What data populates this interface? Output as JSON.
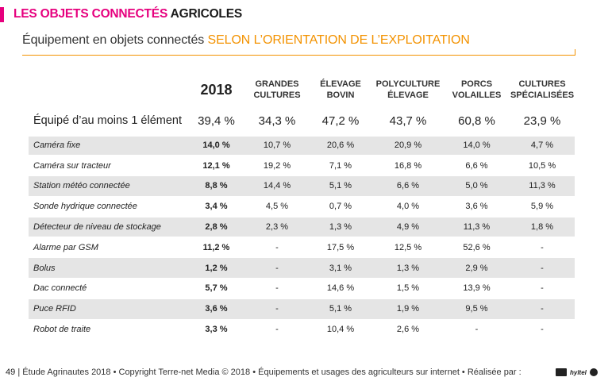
{
  "header": {
    "title_part1": "LES OBJETS CONNECTÉS ",
    "title_part2": "AGRICOLES",
    "accent_color": "#e6007e"
  },
  "subtitle": {
    "part1": "Équipement en objets connectés ",
    "part2": "SELON L’ORIENTATION DE L’EXPLOITATION",
    "accent_color": "#f39200"
  },
  "table": {
    "columns": [
      "2018",
      "GRANDES CULTURES",
      "ÉLEVAGE BOVIN",
      "POLYCULTURE ÉLEVAGE",
      "PORCS VOLAILLES",
      "CULTURES SPÉCIALISÉES"
    ],
    "summary": {
      "label": "Équipé d’au moins 1 élément",
      "values": [
        "39,4 %",
        "34,3 %",
        "47,2 %",
        "43,7 %",
        "60,8 %",
        "23,9 %"
      ]
    },
    "rows": [
      {
        "label": "Caméra fixe",
        "values": [
          "14,0 %",
          "10,7 %",
          "20,6 %",
          "20,9 %",
          "14,0 %",
          "4,7 %"
        ]
      },
      {
        "label": "Caméra sur tracteur",
        "values": [
          "12,1 %",
          "19,2 %",
          "7,1 %",
          "16,8 %",
          "6,6 %",
          "10,5 %"
        ]
      },
      {
        "label": "Station météo connectée",
        "values": [
          "8,8 %",
          "14,4 %",
          "5,1 %",
          "6,6 %",
          "5,0 %",
          "11,3 %"
        ]
      },
      {
        "label": "Sonde hydrique connectée",
        "values": [
          "3,4 %",
          "4,5 %",
          "0,7 %",
          "4,0 %",
          "3,6 %",
          "5,9 %"
        ]
      },
      {
        "label": "Détecteur de niveau de stockage",
        "values": [
          "2,8 %",
          "2,3 %",
          "1,3 %",
          "4,9 %",
          "11,3 %",
          "1,8 %"
        ]
      },
      {
        "label": "Alarme par GSM",
        "values": [
          "11,2 %",
          "-",
          "17,5 %",
          "12,5 %",
          "52,6 %",
          "-"
        ]
      },
      {
        "label": "Bolus",
        "values": [
          "1,2 %",
          "-",
          "3,1 %",
          "1,3 %",
          "2,9 %",
          "-"
        ]
      },
      {
        "label": "Dac connecté",
        "values": [
          "5,7 %",
          "-",
          "14,6 %",
          "1,5 %",
          "13,9 %",
          "-"
        ]
      },
      {
        "label": "Puce RFID",
        "values": [
          "3,6 %",
          "-",
          "5,1 %",
          "1,9 %",
          "9,5 %",
          "-"
        ]
      },
      {
        "label": "Robot de traite",
        "values": [
          "3,3 %",
          "-",
          "10,4 %",
          "2,6 %",
          "-",
          "-"
        ]
      }
    ]
  },
  "footer": {
    "page_number": "49",
    "text": "| Étude Agrinautes 2018 • Copyright Terre-net Media © 2018 • Équipements et usages des agriculteurs sur internet • Réalisée par :",
    "logo_text": "hyltel"
  }
}
